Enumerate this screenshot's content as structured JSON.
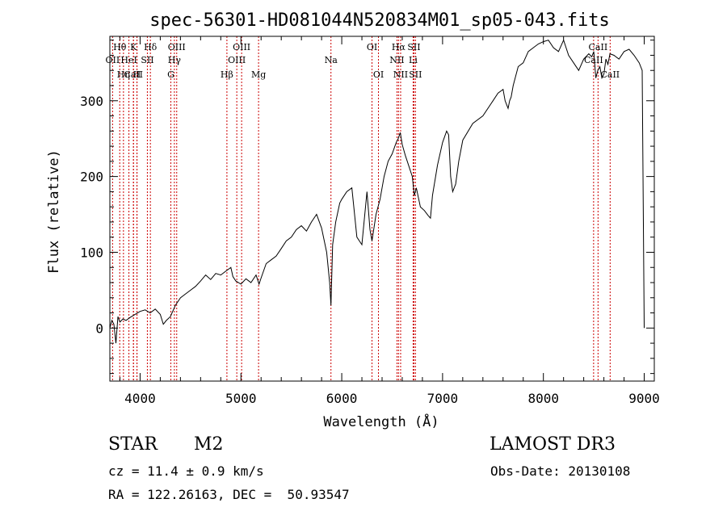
{
  "chart_data": {
    "type": "line",
    "title": "spec-56301-HD081044N520834M01_sp05-043.fits",
    "xlabel": "Wavelength (Å)",
    "ylabel": "Flux (relative)",
    "xlim": [
      3700,
      9100
    ],
    "ylim": [
      -70,
      385
    ],
    "xticks": [
      4000,
      5000,
      6000,
      7000,
      8000,
      9000
    ],
    "yticks": [
      0,
      100,
      200,
      300
    ],
    "series": [
      {
        "name": "spectrum",
        "x": [
          3700,
          3720,
          3740,
          3760,
          3780,
          3800,
          3830,
          3860,
          3900,
          3950,
          4000,
          4050,
          4100,
          4150,
          4200,
          4230,
          4260,
          4300,
          4350,
          4400,
          4450,
          4500,
          4550,
          4600,
          4650,
          4700,
          4750,
          4800,
          4850,
          4880,
          4900,
          4920,
          4950,
          5000,
          5050,
          5100,
          5150,
          5180,
          5200,
          5250,
          5300,
          5350,
          5400,
          5450,
          5500,
          5550,
          5600,
          5650,
          5700,
          5750,
          5800,
          5850,
          5880,
          5893,
          5910,
          5940,
          5980,
          6000,
          6050,
          6100,
          6150,
          6200,
          6250,
          6280,
          6300,
          6340,
          6380,
          6420,
          6460,
          6500,
          6540,
          6560,
          6580,
          6600,
          6630,
          6650,
          6700,
          6720,
          6740,
          6780,
          6820,
          6860,
          6880,
          6900,
          6950,
          7000,
          7040,
          7060,
          7080,
          7100,
          7130,
          7160,
          7200,
          7300,
          7400,
          7500,
          7550,
          7600,
          7620,
          7650,
          7665,
          7680,
          7700,
          7750,
          7800,
          7850,
          7900,
          7950,
          8000,
          8050,
          8100,
          8150,
          8200,
          8250,
          8300,
          8350,
          8400,
          8450,
          8480,
          8500,
          8520,
          8540,
          8560,
          8580,
          8600,
          8620,
          8640,
          8660,
          8700,
          8750,
          8800,
          8850,
          8900,
          8950,
          8980,
          9000
        ],
        "y": [
          0,
          10,
          5,
          -20,
          15,
          8,
          12,
          10,
          14,
          18,
          22,
          24,
          20,
          25,
          18,
          5,
          10,
          15,
          30,
          40,
          45,
          50,
          55,
          62,
          70,
          64,
          72,
          70,
          75,
          78,
          80,
          68,
          62,
          58,
          65,
          60,
          70,
          58,
          66,
          85,
          90,
          95,
          105,
          115,
          120,
          130,
          135,
          128,
          140,
          150,
          132,
          100,
          60,
          30,
          110,
          140,
          165,
          170,
          180,
          185,
          120,
          110,
          180,
          130,
          115,
          150,
          170,
          200,
          220,
          230,
          245,
          250,
          258,
          242,
          228,
          220,
          200,
          175,
          185,
          160,
          155,
          148,
          145,
          175,
          215,
          245,
          260,
          255,
          200,
          180,
          190,
          220,
          248,
          270,
          280,
          300,
          310,
          315,
          300,
          290,
          300,
          305,
          320,
          345,
          350,
          365,
          370,
          375,
          378,
          380,
          370,
          365,
          380,
          360,
          350,
          340,
          355,
          362,
          358,
          365,
          330,
          340,
          345,
          330,
          335,
          355,
          348,
          362,
          360,
          355,
          365,
          368,
          360,
          350,
          340,
          0
        ]
      }
    ],
    "lines": [
      {
        "name": "CaII",
        "x": 3934
      },
      {
        "name": "OII",
        "x": 3727
      },
      {
        "name": "Hη",
        "x": 3835
      },
      {
        "name": "Hθ",
        "x": 3798
      },
      {
        "name": "CaII",
        "x": 3969
      },
      {
        "name": "K",
        "x": 3934
      },
      {
        "name": "HeI",
        "x": 3889
      },
      {
        "name": "H",
        "x": 3969
      },
      {
        "name": "SII",
        "x": 4072
      },
      {
        "name": "Hδ",
        "x": 4102
      },
      {
        "name": "OIII",
        "x": 4363
      },
      {
        "name": "Hγ",
        "x": 4340
      },
      {
        "name": "G",
        "x": 4305
      },
      {
        "name": "Hβ",
        "x": 4861
      },
      {
        "name": "OIII",
        "x": 4959
      },
      {
        "name": "OIII",
        "x": 5007
      },
      {
        "name": "Mg",
        "x": 5175
      },
      {
        "name": "Na",
        "x": 5893
      },
      {
        "name": "OI",
        "x": 6300
      },
      {
        "name": "OI",
        "x": 6364
      },
      {
        "name": "Hα",
        "x": 6563
      },
      {
        "name": "NII",
        "x": 6548
      },
      {
        "name": "NII",
        "x": 6584
      },
      {
        "name": "Li",
        "x": 6708
      },
      {
        "name": "SII",
        "x": 6716
      },
      {
        "name": "SII",
        "x": 6731
      },
      {
        "name": "CaII",
        "x": 8498
      },
      {
        "name": "CaII",
        "x": 8542
      },
      {
        "name": "CaII",
        "x": 8662
      }
    ],
    "line_labels": [
      {
        "text": "Hθ",
        "x": 3798,
        "row": 0
      },
      {
        "text": "K",
        "x": 3934,
        "row": 0
      },
      {
        "text": "Hδ",
        "x": 4102,
        "row": 0
      },
      {
        "text": "OIII",
        "x": 4363,
        "row": 0
      },
      {
        "text": "OIII",
        "x": 5007,
        "row": 0
      },
      {
        "text": "OI",
        "x": 6300,
        "row": 0
      },
      {
        "text": "Hα",
        "x": 6563,
        "row": 0
      },
      {
        "text": "SII",
        "x": 6716,
        "row": 0
      },
      {
        "text": "CaII",
        "x": 8542,
        "row": 0
      },
      {
        "text": "OII",
        "x": 3727,
        "row": 1
      },
      {
        "text": "HeI",
        "x": 3889,
        "row": 1
      },
      {
        "text": "SII",
        "x": 4072,
        "row": 1
      },
      {
        "text": "Hγ",
        "x": 4340,
        "row": 1
      },
      {
        "text": "OIII",
        "x": 4959,
        "row": 1
      },
      {
        "text": "Na",
        "x": 5893,
        "row": 1
      },
      {
        "text": "NII",
        "x": 6548,
        "row": 1
      },
      {
        "text": "Li",
        "x": 6708,
        "row": 1
      },
      {
        "text": "CaII",
        "x": 8498,
        "row": 1
      },
      {
        "text": "CaII",
        "x": 3934,
        "row": 2
      },
      {
        "text": "Hη",
        "x": 3835,
        "row": 2
      },
      {
        "text": "H",
        "x": 3969,
        "row": 2
      },
      {
        "text": "G",
        "x": 4305,
        "row": 2
      },
      {
        "text": "Hβ",
        "x": 4861,
        "row": 2
      },
      {
        "text": "Mg",
        "x": 5175,
        "row": 2
      },
      {
        "text": "OI",
        "x": 6364,
        "row": 2
      },
      {
        "text": "NII",
        "x": 6584,
        "row": 2
      },
      {
        "text": "SII",
        "x": 6731,
        "row": 2
      },
      {
        "text": "CaII",
        "x": 8662,
        "row": 2
      }
    ],
    "line_color": "#cc0000",
    "spectrum_color": "#000000"
  },
  "info": {
    "object_class": "STAR",
    "subclass": "M2",
    "survey": "LAMOST DR3",
    "redshift": "cz = 11.4 ± 0.9 km/s",
    "obs_date": "Obs-Date: 20130108",
    "coords": "RA = 122.26163, DEC =  50.93547"
  }
}
